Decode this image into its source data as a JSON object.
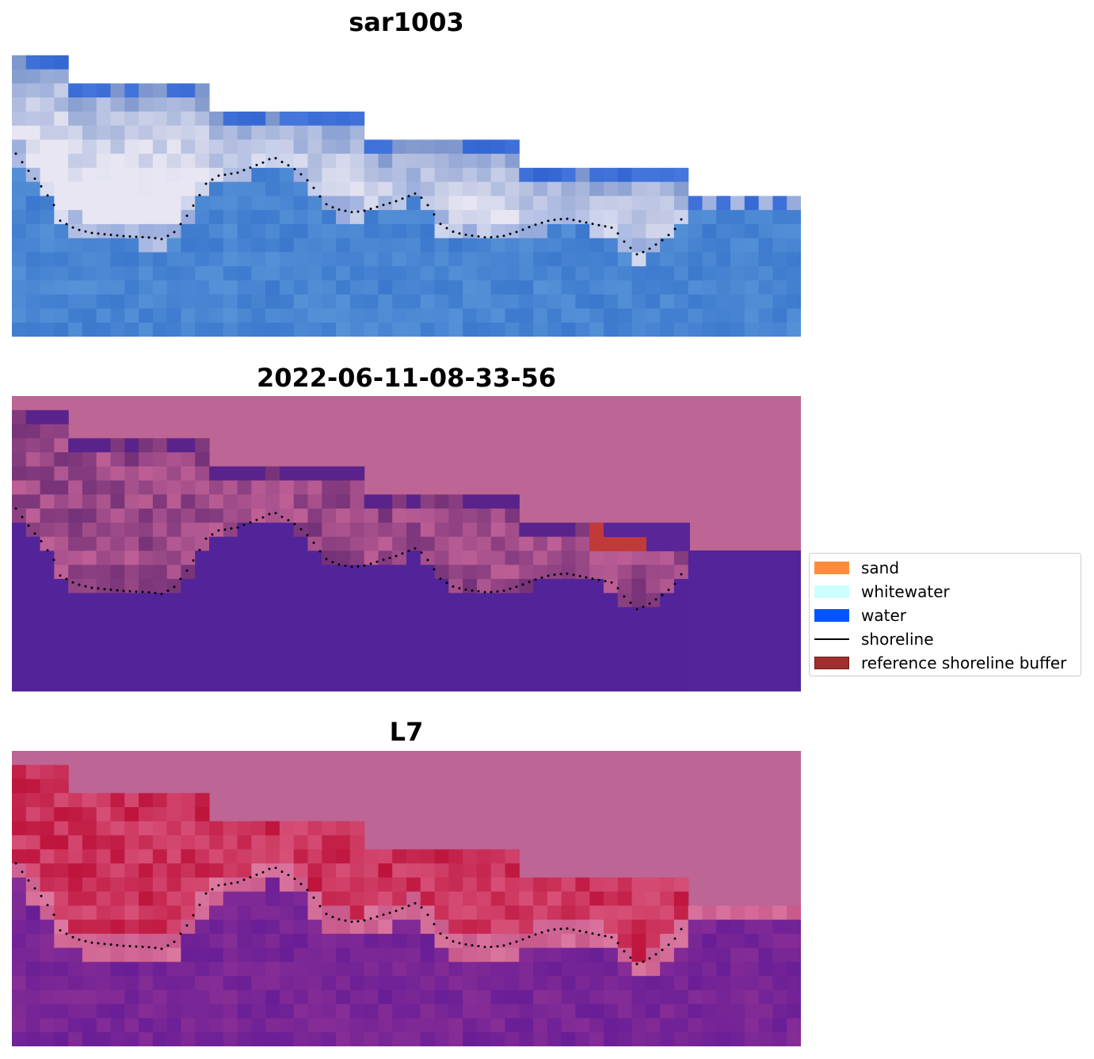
{
  "chart_data": [
    {
      "type": "image",
      "title": "sar1003",
      "palette": "rgb",
      "shoreline": "dotted"
    },
    {
      "type": "image",
      "title": "2022-06-11-08-33-56",
      "palette": "classification",
      "shoreline": "dotted"
    },
    {
      "type": "image",
      "title": "L7",
      "palette": "mndwi",
      "shoreline": "dotted"
    }
  ],
  "legend": {
    "placement": "center-right",
    "items": [
      {
        "label": "sand",
        "kind": "patch",
        "color": "#ff8c3c"
      },
      {
        "label": "whitewater",
        "kind": "patch",
        "color": "#ccffff"
      },
      {
        "label": "water",
        "kind": "patch",
        "color": "#0055ff"
      },
      {
        "label": "shoreline",
        "kind": "line",
        "color": "#000000"
      },
      {
        "label": "reference shoreline buffer",
        "kind": "patch",
        "color": "#a0302e"
      }
    ]
  }
}
